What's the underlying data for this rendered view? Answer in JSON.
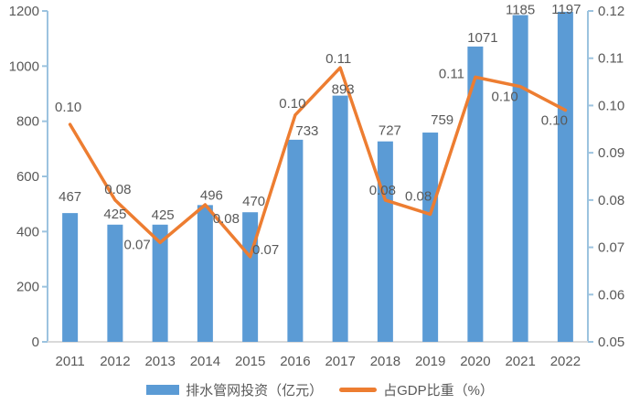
{
  "chart_data": {
    "type": "combo",
    "title": "",
    "categories": [
      "2011",
      "2012",
      "2013",
      "2014",
      "2015",
      "2016",
      "2017",
      "2018",
      "2019",
      "2020",
      "2021",
      "2022"
    ],
    "series": [
      {
        "name": "排水管网投资（亿元）",
        "kind": "bar",
        "axis": "left",
        "color": "#5B9BD5",
        "values": [
          467,
          425,
          425,
          496,
          470,
          733,
          893,
          727,
          759,
          1071,
          1185,
          1197
        ],
        "value_labels": [
          "467",
          "425",
          "425",
          "496",
          "470",
          "733",
          "893",
          "727",
          "759",
          "1071",
          "1185",
          "1197"
        ],
        "label_offsets": [
          [
            0,
            -18
          ],
          [
            0,
            -12
          ],
          [
            3,
            -11
          ],
          [
            7,
            -11
          ],
          [
            4,
            -12
          ],
          [
            13,
            -10
          ],
          [
            3,
            -7
          ],
          [
            5,
            -12
          ],
          [
            13,
            -14
          ],
          [
            8,
            -10
          ],
          [
            0,
            -6
          ],
          [
            1,
            -3
          ]
        ]
      },
      {
        "name": "占GDP比重（%）",
        "kind": "line",
        "axis": "right",
        "color": "#ED7D31",
        "values": [
          0.096,
          0.08,
          0.071,
          0.079,
          0.068,
          0.098,
          0.108,
          0.08,
          0.077,
          0.106,
          0.104,
          0.099
        ],
        "value_labels": [
          "0.10",
          "0.08",
          "0.07",
          "0.08",
          "0.07",
          "0.10",
          "0.11",
          "0.08",
          "0.08",
          "0.11",
          "0.10",
          "0.10"
        ],
        "label_offsets": [
          [
            -2,
            -19
          ],
          [
            3,
            -12
          ],
          [
            -25,
            2
          ],
          [
            23,
            15
          ],
          [
            17,
            -8
          ],
          [
            -3,
            -13
          ],
          [
            -2,
            -10
          ],
          [
            -3,
            -11
          ],
          [
            -13,
            -20
          ],
          [
            -26,
            -4
          ],
          [
            -17,
            11
          ],
          [
            -12,
            11
          ]
        ]
      }
    ],
    "left_axis": {
      "min": 0,
      "max": 1200,
      "step": 200,
      "tick_labels": [
        "0",
        "200",
        "400",
        "600",
        "800",
        "1000",
        "1200"
      ]
    },
    "right_axis": {
      "min": 0.05,
      "max": 0.12,
      "step": 0.01,
      "tick_labels": [
        "0.05",
        "0.06",
        "0.07",
        "0.08",
        "0.09",
        "0.10",
        "0.11",
        "0.12"
      ]
    },
    "grid": false,
    "legend_position": "bottom"
  },
  "legend": {
    "bar_label": "排水管网投资（亿元）",
    "line_label": "占GDP比重（%）"
  },
  "colors": {
    "bar": "#5B9BD5",
    "line": "#ED7D31",
    "axis": "#9CC3DF",
    "baseline": "#D9D9D9",
    "text": "#595959",
    "background": "#FFFFFF"
  }
}
